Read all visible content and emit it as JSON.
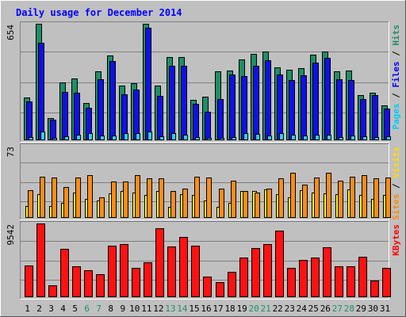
{
  "chart_data": {
    "type": "bar",
    "title": "Daily usage for December 2014",
    "categories": [
      "1",
      "2",
      "3",
      "4",
      "5",
      "6",
      "7",
      "8",
      "9",
      "10",
      "11",
      "12",
      "13",
      "14",
      "15",
      "16",
      "17",
      "18",
      "19",
      "20",
      "21",
      "22",
      "23",
      "24",
      "25",
      "26",
      "27",
      "28",
      "29",
      "30",
      "31"
    ],
    "weekend_days": [
      "6",
      "7",
      "13",
      "14",
      "20",
      "21",
      "27",
      "28"
    ],
    "panels": [
      {
        "id": "top",
        "max_label": "654",
        "ymax": 654,
        "right_label_parts": [
          {
            "text": "Pages",
            "color": "#00ccff"
          },
          {
            "text": " / ",
            "color": "#000000"
          },
          {
            "text": "Files",
            "color": "#0000ff"
          },
          {
            "text": " / ",
            "color": "#000000"
          },
          {
            "text": "Hits",
            "color": "#1f8f66"
          }
        ],
        "series": [
          {
            "name": "Hits",
            "color": "#1f8f66",
            "values": [
              240,
              654,
              123,
              323,
              349,
              210,
              389,
              475,
              305,
              322,
              654,
              305,
              469,
              468,
              226,
              246,
              389,
              393,
              453,
              487,
              497,
              408,
              394,
              403,
              482,
              498,
              386,
              393,
              255,
              268,
              196
            ]
          },
          {
            "name": "Files",
            "color": "#1010e6",
            "values": [
              217,
              548,
              116,
              270,
              267,
              183,
              343,
              445,
              260,
              286,
              630,
              247,
              420,
              418,
              203,
              162,
              231,
              368,
              359,
              420,
              449,
              368,
              340,
              365,
              436,
              464,
              342,
              337,
              231,
              255,
              180
            ]
          },
          {
            "name": "Pages",
            "color": "#33ccff",
            "values": [
              20,
              50,
              15,
              23,
              33,
              40,
              25,
              28,
              38,
              38,
              50,
              24,
              38,
              30,
              17,
              14,
              15,
              18,
              42,
              34,
              28,
              38,
              31,
              25,
              32,
              33,
              17,
              26,
              24,
              17,
              21
            ]
          }
        ]
      },
      {
        "id": "middle",
        "max_label": "73",
        "ymax": 73,
        "right_label_parts": [
          {
            "text": "Sites",
            "color": "#ff8800"
          },
          {
            "text": " / ",
            "color": "#000000"
          },
          {
            "text": "Visits",
            "color": "#ffdd00"
          }
        ],
        "series": [
          {
            "name": "Visits",
            "color": "#ffff33",
            "values": [
              12,
              24,
              12,
              15,
              26,
              19,
              18,
              25,
              27,
              26,
              23,
              27,
              11,
              24,
              23,
              18,
              11,
              15,
              27,
              27,
              29,
              24,
              21,
              28,
              26,
              25,
              24,
              29,
              23,
              19,
              23
            ]
          },
          {
            "name": "Sites",
            "color": "#ff8c1a",
            "values": [
              28,
              42,
              41,
              31,
              41,
              43,
              21,
              37,
              37,
              43,
              40,
              40,
              27,
              30,
              42,
              41,
              30,
              38,
              27,
              26,
              30,
              40,
              46,
              34,
              41,
              46,
              38,
              42,
              43,
              40,
              41
            ]
          }
        ]
      },
      {
        "id": "bottom",
        "max_label": "9542",
        "ymax": 9542,
        "right_label_parts": [
          {
            "text": "KBytes",
            "color": "#ff0000"
          }
        ],
        "series": [
          {
            "name": "KBytes",
            "color": "#ff1111",
            "values": [
              4100,
              9542,
              1500,
              6300,
              4000,
              3500,
              3000,
              6700,
              6900,
              3800,
              4500,
              8900,
              6600,
              7800,
              6700,
              2700,
              1900,
              3300,
              5100,
              6400,
              6900,
              8600,
              3800,
              4800,
              5100,
              6500,
              4000,
              4000,
              5200,
              2200,
              3800
            ]
          }
        ]
      }
    ]
  }
}
